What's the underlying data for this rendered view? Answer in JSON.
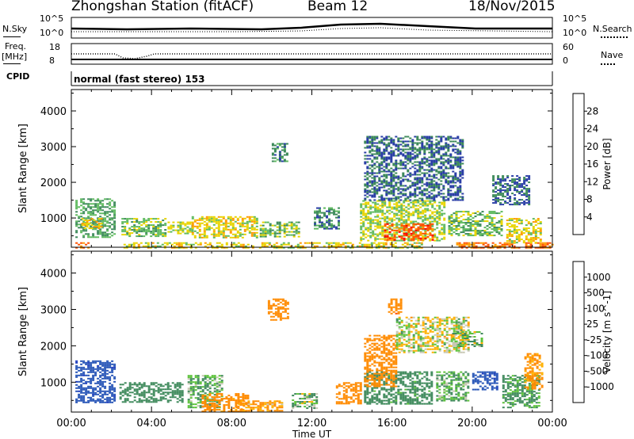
{
  "header": {
    "station": "Zhongshan Station (fitACF)",
    "beam": "Beam 12",
    "date": "18/Nov/2015"
  },
  "top_panels": {
    "nsky_label": "N.Sky",
    "nsearch_label": "N.Search",
    "freq_label_line1": "Freq.",
    "freq_label_line2": "[MHz]",
    "nave_label": "Nave",
    "cpid_label": "CPID",
    "left_ticks_1": [
      "10^5",
      "10^0"
    ],
    "right_ticks_1": [
      "10^5",
      "10^0"
    ],
    "left_ticks_2": [
      "18",
      "8"
    ],
    "right_ticks_2": [
      "60",
      "0"
    ],
    "cpid_text": "normal (fast stereo) 153"
  },
  "chart_data": [
    {
      "type": "heatmap",
      "title": "",
      "xlabel": "Time UT",
      "ylabel": "Slant Range [km]",
      "x_ticks": [
        "00:00",
        "04:00",
        "08:00",
        "12:00",
        "16:00",
        "20:00",
        "00:00"
      ],
      "y_ticks": [
        1000,
        2000,
        3000,
        4000
      ],
      "ylim": [
        180,
        4600
      ],
      "xlim_hours": [
        0,
        24
      ],
      "colorbar": {
        "label": "Power [dB]",
        "ticks": [
          "4",
          "8",
          "12",
          "16",
          "20",
          "24",
          "28"
        ],
        "colors": [
          "#0000ff",
          "#2a3ea6",
          "#3d8a5a",
          "#5fba5f",
          "#e8d400",
          "#ff9a00",
          "#ff5000",
          "#ff0000"
        ]
      },
      "regions": [
        {
          "t": [
            0.2,
            0.9
          ],
          "r": [
            180,
            320
          ],
          "value": 24
        },
        {
          "t": [
            2.6,
            17.5
          ],
          "r": [
            180,
            320
          ],
          "value": 18
        },
        {
          "t": [
            19.2,
            24.0
          ],
          "r": [
            180,
            320
          ],
          "value": 24
        },
        {
          "t": [
            0.2,
            2.2
          ],
          "r": [
            480,
            1550
          ],
          "value": 12
        },
        {
          "t": [
            0.5,
            1.5
          ],
          "r": [
            700,
            1000
          ],
          "value": 20
        },
        {
          "t": [
            2.5,
            4.7
          ],
          "r": [
            500,
            1000
          ],
          "value": 14
        },
        {
          "t": [
            4.8,
            6.0
          ],
          "r": [
            550,
            900
          ],
          "value": 16
        },
        {
          "t": [
            6.0,
            9.3
          ],
          "r": [
            450,
            1050
          ],
          "value": 18
        },
        {
          "t": [
            9.4,
            11.3
          ],
          "r": [
            500,
            900
          ],
          "value": 14
        },
        {
          "t": [
            12.1,
            13.4
          ],
          "r": [
            700,
            1300
          ],
          "value": 10
        },
        {
          "t": [
            14.4,
            18.6
          ],
          "r": [
            350,
            1500
          ],
          "value": 16
        },
        {
          "t": [
            15.6,
            18.0
          ],
          "r": [
            400,
            850
          ],
          "value": 26
        },
        {
          "t": [
            18.8,
            21.5
          ],
          "r": [
            500,
            1200
          ],
          "value": 14
        },
        {
          "t": [
            21.7,
            23.4
          ],
          "r": [
            300,
            1000
          ],
          "value": 18
        },
        {
          "t": [
            14.6,
            19.5
          ],
          "r": [
            1500,
            3300
          ],
          "value": 8
        },
        {
          "t": [
            21.0,
            22.8
          ],
          "r": [
            1400,
            2200
          ],
          "value": 8
        },
        {
          "t": [
            10.0,
            10.8
          ],
          "r": [
            2600,
            3100
          ],
          "value": 10
        }
      ]
    },
    {
      "type": "heatmap",
      "title": "",
      "xlabel": "Time UT",
      "ylabel": "Slant Range [km]",
      "x_ticks": [
        "00:00",
        "04:00",
        "08:00",
        "12:00",
        "16:00",
        "20:00",
        "00:00"
      ],
      "y_ticks": [
        1000,
        2000,
        3000,
        4000
      ],
      "ylim": [
        180,
        4600
      ],
      "xlim_hours": [
        0,
        24
      ],
      "colorbar": {
        "label": "Velocity [m s^-1]",
        "ticks": [
          "1000",
          "500",
          "100",
          "25",
          "-25",
          "-100",
          "-500",
          "-1000"
        ],
        "colors": [
          "#1e3cbe",
          "#2a57b8",
          "#3f8a5c",
          "#5cc23a",
          "#c8c8b4",
          "#ffb000",
          "#ff8a00",
          "#ff4800",
          "#ee0000"
        ]
      },
      "regions": [
        {
          "t": [
            0.2,
            2.2
          ],
          "r": [
            450,
            1600
          ],
          "value": 900
        },
        {
          "t": [
            2.4,
            5.6
          ],
          "r": [
            450,
            1000
          ],
          "value": 300
        },
        {
          "t": [
            5.8,
            7.5
          ],
          "r": [
            300,
            1200
          ],
          "value": 100
        },
        {
          "t": [
            6.5,
            8.8
          ],
          "r": [
            200,
            700
          ],
          "value": -200
        },
        {
          "t": [
            8.2,
            10.5
          ],
          "r": [
            200,
            500
          ],
          "value": -120
        },
        {
          "t": [
            11.0,
            12.3
          ],
          "r": [
            300,
            700
          ],
          "value": 60
        },
        {
          "t": [
            13.2,
            14.4
          ],
          "r": [
            400,
            1000
          ],
          "value": -300
        },
        {
          "t": [
            14.6,
            18.0
          ],
          "r": [
            400,
            1300
          ],
          "value": 200
        },
        {
          "t": [
            14.6,
            16.2
          ],
          "r": [
            900,
            2300
          ],
          "value": -300
        },
        {
          "t": [
            16.2,
            19.8
          ],
          "r": [
            1800,
            2800
          ],
          "value": 0
        },
        {
          "t": [
            18.2,
            19.8
          ],
          "r": [
            500,
            1300
          ],
          "value": 100
        },
        {
          "t": [
            20.0,
            21.2
          ],
          "r": [
            800,
            1300
          ],
          "value": 900
        },
        {
          "t": [
            21.5,
            23.3
          ],
          "r": [
            300,
            1200
          ],
          "value": 150
        },
        {
          "t": [
            22.6,
            23.5
          ],
          "r": [
            800,
            1800
          ],
          "value": -150
        },
        {
          "t": [
            9.8,
            10.8
          ],
          "r": [
            2700,
            3300
          ],
          "value": -300
        },
        {
          "t": [
            15.8,
            16.5
          ],
          "r": [
            2900,
            3300
          ],
          "value": -400
        },
        {
          "t": [
            19.0,
            20.5
          ],
          "r": [
            2000,
            2400
          ],
          "value": 60
        }
      ]
    }
  ]
}
